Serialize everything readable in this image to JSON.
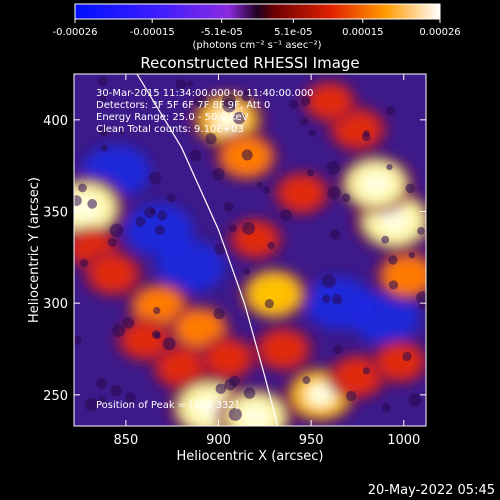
{
  "chart_data": {
    "type": "heatmap",
    "title": "Reconstructed RHESSI Image",
    "xlabel": "Heliocentric X (arcsec)",
    "ylabel": "Heliocentric Y (arcsec)",
    "xlim": [
      822,
      1012
    ],
    "ylim": [
      233,
      425
    ],
    "x_ticks": [
      850,
      900,
      950,
      1000
    ],
    "y_ticks": [
      250,
      300,
      350,
      400
    ],
    "x_tick_labels": [
      "850",
      "900",
      "950",
      "1000"
    ],
    "y_tick_labels": [
      "250",
      "300",
      "350",
      "400"
    ],
    "grid": false,
    "colorbar": {
      "range": [
        -0.00026,
        0.00026
      ],
      "tick_values": [
        -0.00026,
        -0.00015,
        -5.1e-05,
        5.1e-05,
        0.00015,
        0.00026
      ],
      "tick_labels": [
        "-0.00026",
        "-0.00015",
        "-5.1e-05",
        "5.1e-05",
        "0.00015",
        "0.00026"
      ],
      "units": "(photons cm⁻² s⁻¹ asec⁻²)"
    },
    "annotations": [
      "30-Mar-2015 11:34:00.000 to 11:40:00.000",
      "Detectors: 3F 5F 6F 7F 8F 9F, Att 0",
      "Energy Range: 25.0 - 50.0 keV",
      "Clean    Total counts: 9.10E+03"
    ],
    "peak_label": "Position of Peak = [992,332]",
    "peak_position": [
      992,
      332
    ],
    "limb_curve": [
      [
        856,
        425
      ],
      [
        880,
        385
      ],
      [
        900,
        340
      ],
      [
        914,
        300
      ],
      [
        925,
        260
      ],
      [
        932,
        233
      ]
    ],
    "bright_regions": [
      {
        "x": 828,
        "y": 352,
        "level": 1.0
      },
      {
        "x": 832,
        "y": 330,
        "level": 0.45
      },
      {
        "x": 843,
        "y": 316,
        "level": 0.55
      },
      {
        "x": 868,
        "y": 298,
        "level": 0.65
      },
      {
        "x": 890,
        "y": 286,
        "level": 0.6
      },
      {
        "x": 880,
        "y": 265,
        "level": 0.55
      },
      {
        "x": 895,
        "y": 243,
        "level": 1.0
      },
      {
        "x": 920,
        "y": 238,
        "level": 0.9
      },
      {
        "x": 905,
        "y": 270,
        "level": 0.5
      },
      {
        "x": 930,
        "y": 305,
        "level": 0.75
      },
      {
        "x": 935,
        "y": 275,
        "level": 0.55
      },
      {
        "x": 955,
        "y": 250,
        "level": 0.85
      },
      {
        "x": 975,
        "y": 260,
        "level": 0.55
      },
      {
        "x": 998,
        "y": 268,
        "level": 0.5
      },
      {
        "x": 995,
        "y": 345,
        "level": 1.0
      },
      {
        "x": 985,
        "y": 365,
        "level": 0.9
      },
      {
        "x": 1002,
        "y": 315,
        "level": 0.65
      },
      {
        "x": 975,
        "y": 395,
        "level": 0.55
      },
      {
        "x": 960,
        "y": 410,
        "level": 0.45
      },
      {
        "x": 905,
        "y": 400,
        "level": 0.85
      },
      {
        "x": 915,
        "y": 380,
        "level": 0.65
      },
      {
        "x": 945,
        "y": 360,
        "level": 0.5
      },
      {
        "x": 920,
        "y": 335,
        "level": 0.45
      },
      {
        "x": 860,
        "y": 280,
        "level": 0.5
      }
    ],
    "dark_regions": [
      {
        "x": 868,
        "y": 340,
        "level": -0.6
      },
      {
        "x": 885,
        "y": 320,
        "level": -0.5
      },
      {
        "x": 845,
        "y": 372,
        "level": -0.4
      },
      {
        "x": 965,
        "y": 300,
        "level": -0.45
      },
      {
        "x": 990,
        "y": 292,
        "level": -0.4
      }
    ]
  },
  "footer": {
    "timestamp": "20-May-2022 05:45"
  }
}
